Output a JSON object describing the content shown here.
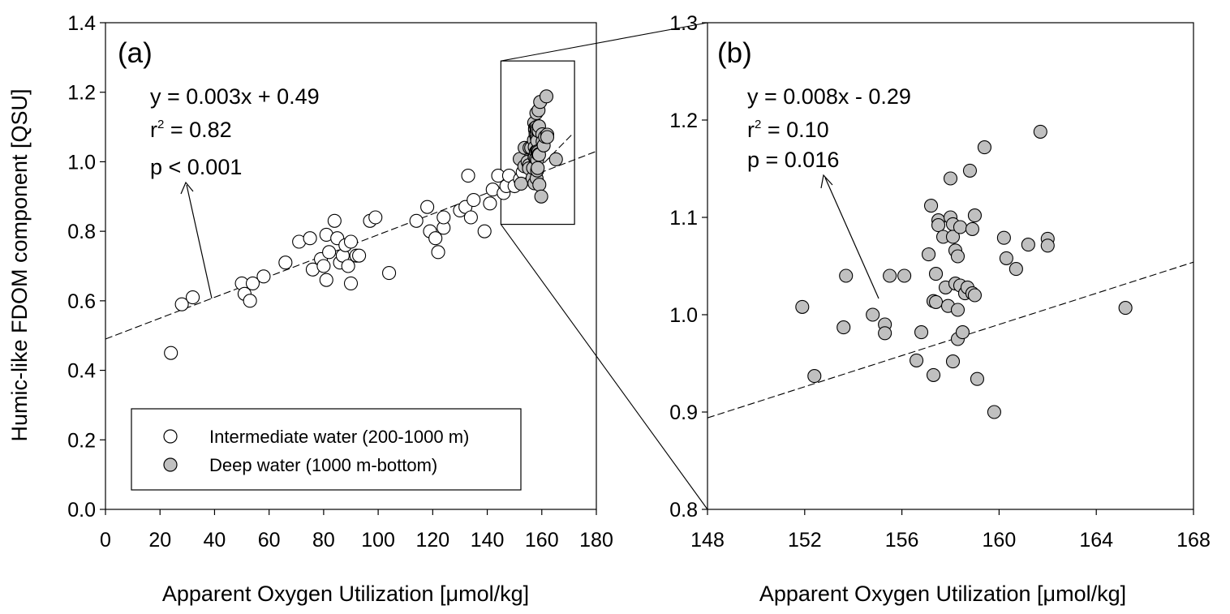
{
  "ylabel": "Humic-like FDOM component [QSU]",
  "colors": {
    "intermediate_fill": "#ffffff",
    "deep_fill": "#c0c0c0",
    "marker_stroke": "#000000",
    "line": "#000000"
  },
  "chart_data": [
    {
      "type": "scatter",
      "panel_label": "(a)",
      "xlabel": "Apparent Oxygen Utilization [μmol/kg]",
      "ylabel": "Humic-like FDOM component [QSU]",
      "xlim": [
        0,
        180
      ],
      "ylim": [
        0.0,
        1.4
      ],
      "xticks": [
        "0",
        "20",
        "40",
        "60",
        "80",
        "100",
        "120",
        "140",
        "160",
        "180"
      ],
      "yticks": [
        "0.0",
        "0.2",
        "0.4",
        "0.6",
        "0.8",
        "1.0",
        "1.2",
        "1.4"
      ],
      "grid": false,
      "legend_position": "lower-left",
      "annotation": {
        "line1": "y = 0.003x + 0.49",
        "r_prefix": "r",
        "r_sup": "2",
        "r_suffix": " = 0.82",
        "line3": "p < 0.001"
      },
      "fit_line": {
        "slope": 0.003,
        "intercept": 0.49,
        "x_range": [
          0,
          180
        ]
      },
      "zoom_box": {
        "x": [
          145,
          172
        ],
        "y": [
          0.82,
          1.29
        ]
      },
      "series": [
        {
          "name": "Intermediate water (200-1000 m)",
          "marker": "open-circle",
          "x": [
            24,
            28,
            32,
            50,
            51,
            53,
            54,
            58,
            66,
            71,
            75,
            76,
            79,
            80,
            81,
            81,
            82,
            84,
            85,
            86,
            87,
            88,
            89,
            90,
            90,
            92,
            93,
            97,
            99,
            104,
            114,
            118,
            119,
            121,
            122,
            124,
            124,
            130,
            132,
            133,
            134,
            135,
            139,
            141,
            142,
            144,
            146,
            147,
            148,
            150,
            152,
            153
          ],
          "y": [
            0.45,
            0.59,
            0.61,
            0.65,
            0.62,
            0.6,
            0.65,
            0.67,
            0.71,
            0.77,
            0.78,
            0.69,
            0.72,
            0.7,
            0.79,
            0.66,
            0.74,
            0.83,
            0.78,
            0.71,
            0.73,
            0.76,
            0.7,
            0.65,
            0.77,
            0.73,
            0.73,
            0.83,
            0.84,
            0.68,
            0.83,
            0.87,
            0.8,
            0.78,
            0.74,
            0.81,
            0.84,
            0.86,
            0.87,
            0.96,
            0.84,
            0.89,
            0.8,
            0.88,
            0.92,
            0.96,
            0.91,
            0.93,
            0.96,
            0.93,
            0.95,
            0.97
          ]
        },
        {
          "name": "Deep water (1000 m-bottom)",
          "marker": "gray-circle",
          "x": [
            151.9,
            152.4,
            153.6,
            153.7,
            154.8,
            155.3,
            155.3,
            155.5,
            156.1,
            156.6,
            156.8,
            157.1,
            157.2,
            157.3,
            157.3,
            157.4,
            157.4,
            157.5,
            157.5,
            157.7,
            157.8,
            157.9,
            158.0,
            158.0,
            158.1,
            158.1,
            158.1,
            158.2,
            158.2,
            158.3,
            158.3,
            158.3,
            158.4,
            158.4,
            158.5,
            158.6,
            158.7,
            158.8,
            158.9,
            158.9,
            159.0,
            159.0,
            159.1,
            159.4,
            159.8,
            160.2,
            160.3,
            160.7,
            161.2,
            161.7,
            162.0,
            162.0,
            165.2
          ],
          "y": [
            1.008,
            0.937,
            0.987,
            1.04,
            1.0,
            0.99,
            0.981,
            1.04,
            1.04,
            0.953,
            0.982,
            1.062,
            1.112,
            1.014,
            0.938,
            1.042,
            1.013,
            1.097,
            1.092,
            1.08,
            1.028,
            1.009,
            1.1,
            1.14,
            1.093,
            1.08,
            0.952,
            1.066,
            1.032,
            1.06,
            1.005,
            0.975,
            1.03,
            1.09,
            0.982,
            1.022,
            1.028,
            1.148,
            1.088,
            1.022,
            1.102,
            1.02,
            0.934,
            1.172,
            0.9,
            1.079,
            1.058,
            1.047,
            1.072,
            1.188,
            1.078,
            1.071,
            1.007
          ]
        }
      ]
    },
    {
      "type": "scatter",
      "panel_label": "(b)",
      "xlabel": "Apparent Oxygen Utilization [μmol/kg]",
      "ylabel": "",
      "xlim": [
        148,
        168
      ],
      "ylim": [
        0.8,
        1.3
      ],
      "xticks": [
        "148",
        "152",
        "156",
        "160",
        "164",
        "168"
      ],
      "yticks": [
        "0.8",
        "0.9",
        "1.0",
        "1.1",
        "1.2",
        "1.3"
      ],
      "grid": false,
      "annotation": {
        "line1": "y = 0.008x - 0.29",
        "r_prefix": "r",
        "r_sup": "2",
        "r_suffix": " = 0.10",
        "line3": "p = 0.016"
      },
      "fit_line": {
        "slope": 0.008,
        "intercept": -0.29,
        "x_range": [
          148,
          168
        ]
      },
      "series": [
        {
          "name": "Deep water (1000 m-bottom)",
          "marker": "gray-circle",
          "x": [
            151.9,
            152.4,
            153.6,
            153.7,
            154.8,
            155.3,
            155.3,
            155.5,
            156.1,
            156.6,
            156.8,
            157.1,
            157.2,
            157.3,
            157.3,
            157.4,
            157.4,
            157.5,
            157.5,
            157.7,
            157.8,
            157.9,
            158.0,
            158.0,
            158.1,
            158.1,
            158.1,
            158.2,
            158.2,
            158.3,
            158.3,
            158.3,
            158.4,
            158.4,
            158.5,
            158.6,
            158.7,
            158.8,
            158.9,
            158.9,
            159.0,
            159.0,
            159.1,
            159.4,
            159.8,
            160.2,
            160.3,
            160.7,
            161.2,
            161.7,
            162.0,
            162.0,
            165.2
          ],
          "y": [
            1.008,
            0.937,
            0.987,
            1.04,
            1.0,
            0.99,
            0.981,
            1.04,
            1.04,
            0.953,
            0.982,
            1.062,
            1.112,
            1.014,
            0.938,
            1.042,
            1.013,
            1.097,
            1.092,
            1.08,
            1.028,
            1.009,
            1.1,
            1.14,
            1.093,
            1.08,
            0.952,
            1.066,
            1.032,
            1.06,
            1.005,
            0.975,
            1.03,
            1.09,
            0.982,
            1.022,
            1.028,
            1.148,
            1.088,
            1.022,
            1.102,
            1.02,
            0.934,
            1.172,
            0.9,
            1.079,
            1.058,
            1.047,
            1.072,
            1.188,
            1.078,
            1.071,
            1.007
          ]
        }
      ]
    }
  ]
}
